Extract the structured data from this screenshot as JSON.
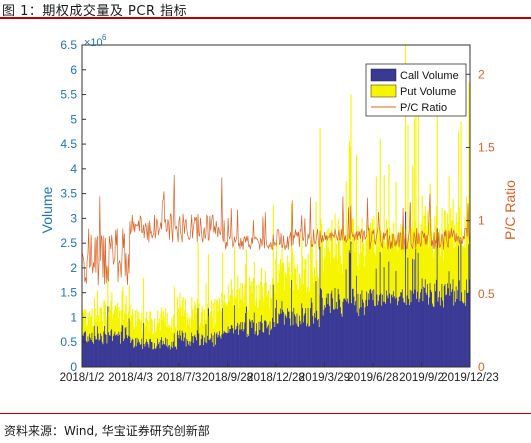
{
  "title": "图 1：期权成交量及 PCR 指标",
  "source": "资料来源：Wind, 华宝证券研究创新部",
  "chart_data": {
    "type": "bar+line",
    "ylabel": "Volume",
    "y2label": "P/C Ratio",
    "y_exponent_label": "×10",
    "y_exponent_power": "6",
    "ylim": [
      0,
      6.5
    ],
    "y2lim": [
      0,
      2.2
    ],
    "yticks": [
      "0",
      "0.5",
      "1",
      "1.5",
      "2",
      "2.5",
      "3",
      "3.5",
      "4",
      "4.5",
      "5",
      "5.5",
      "6",
      "6.5"
    ],
    "y2ticks": [
      "0",
      "0.5",
      "1",
      "1.5",
      "2"
    ],
    "xtick_labels": [
      "2018/1/2",
      "2018/4/3",
      "2018/7/3",
      "2018/9/28",
      "2018/12/28",
      "2019/3/29",
      "2019/6/28",
      "2019/9/2",
      "2019/12/23"
    ],
    "legend": {
      "position": "top-right",
      "entries": [
        "Call Volume",
        "Put Volume",
        "P/C Ratio"
      ]
    },
    "series_colors": {
      "call": "#3a3a96",
      "put": "#f5f500",
      "ratio": "#d9642a"
    },
    "x_count": 490,
    "segments": [
      {
        "x": [
          0,
          60
        ],
        "call": [
          0.45,
          0.85
        ],
        "put_ratio": [
          0.55,
          0.95
        ]
      },
      {
        "x": [
          60,
          120
        ],
        "call": [
          0.35,
          0.6
        ],
        "put_ratio": [
          0.85,
          1.05
        ]
      },
      {
        "x": [
          120,
          180
        ],
        "call": [
          0.4,
          0.75
        ],
        "put_ratio": [
          0.85,
          1.05
        ]
      },
      {
        "x": [
          180,
          240
        ],
        "call": [
          0.6,
          0.95
        ],
        "put_ratio": [
          0.8,
          0.9
        ]
      },
      {
        "x": [
          240,
          300
        ],
        "call": [
          0.8,
          1.2
        ],
        "put_ratio": [
          0.8,
          0.95
        ]
      },
      {
        "x": [
          300,
          360
        ],
        "call": [
          1.0,
          1.6
        ],
        "put_ratio": [
          0.85,
          0.95
        ]
      },
      {
        "x": [
          360,
          420
        ],
        "call": [
          1.2,
          1.6
        ],
        "put_ratio": [
          0.8,
          0.95
        ]
      },
      {
        "x": [
          420,
          490
        ],
        "call": [
          1.2,
          1.8
        ],
        "put_ratio": [
          0.8,
          0.95
        ]
      }
    ]
  }
}
